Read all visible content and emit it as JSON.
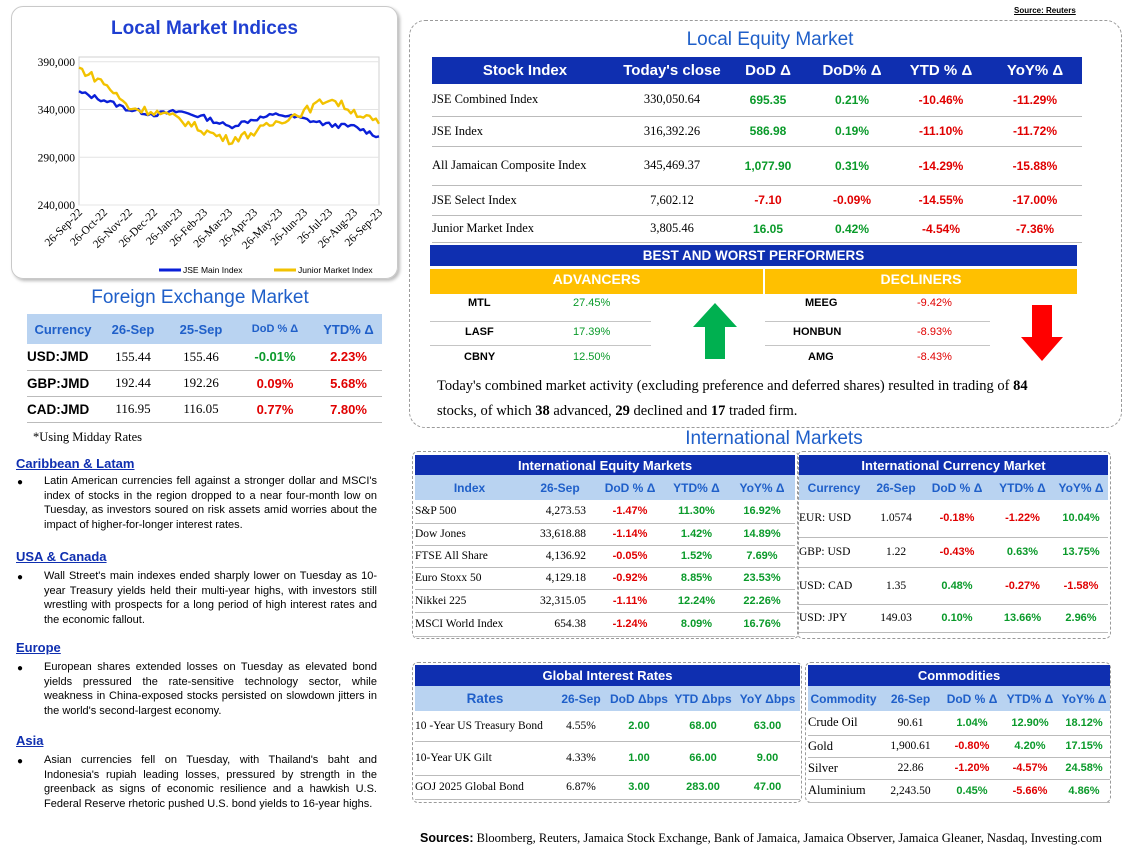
{
  "source_top": "Source: Reuters",
  "chart_data": {
    "type": "line",
    "title": "Local Market Indices",
    "categories": [
      "26-Sep-22",
      "26-Oct-22",
      "26-Nov-22",
      "26-Dec-22",
      "26-Jan-23",
      "26-Feb-23",
      "26-Mar-23",
      "26-Apr-23",
      "26-May-23",
      "26-Jun-23",
      "26-Jul-23",
      "26-Aug-23",
      "26-Sep-23"
    ],
    "y_ticks": [
      "390,000",
      "340,000",
      "290,000",
      "240,000"
    ],
    "ylim": [
      240000,
      395000
    ],
    "legend_position": "bottom",
    "series": [
      {
        "name": "JSE Main Index",
        "color": "#0a1fd8",
        "values": [
          358000,
          350000,
          340000,
          335000,
          338000,
          332000,
          322000,
          330000,
          335000,
          330000,
          324000,
          322000,
          312000
        ]
      },
      {
        "name": "Junior Market Index",
        "color": "#f2c200",
        "values": [
          383000,
          368000,
          342000,
          338000,
          330000,
          318000,
          308000,
          316000,
          328000,
          338000,
          352000,
          338000,
          325000
        ]
      }
    ]
  },
  "fx": {
    "title": "Foreign Exchange Market",
    "headers": [
      "Currency",
      "26-Sep",
      "25-Sep",
      "DoD % Δ",
      "YTD% Δ"
    ],
    "rows": [
      {
        "currency": "USD:JMD",
        "d1": "155.44",
        "d2": "155.46",
        "dod": "-0.01%",
        "ytd": "2.23%"
      },
      {
        "currency": "GBP:JMD",
        "d1": "192.44",
        "d2": "192.26",
        "dod": "0.09%",
        "ytd": "5.68%"
      },
      {
        "currency": "CAD:JMD",
        "d1": "116.95",
        "d2": "116.05",
        "dod": "0.77%",
        "ytd": "7.80%"
      }
    ],
    "note": "*Using Midday Rates"
  },
  "news": [
    {
      "heading": "Caribbean & Latam",
      "text": "Latin American currencies fell against a stronger dollar and MSCI's index of stocks in the region dropped to a near four-month low on Tuesday, as investors soured on risk assets amid worries about the impact of higher-for-longer interest rates."
    },
    {
      "heading": "USA & Canada",
      "text": "Wall Street's main indexes ended sharply lower on Tuesday as 10-year Treasury yields held their multi-year highs, with investors still wrestling with prospects for a long period of high interest rates and the economic fallout."
    },
    {
      "heading": "Europe",
      "text": "European shares extended losses on Tuesday as elevated bond yields pressured the rate-sensitive technology sector, while weakness in China-exposed stocks persisted on slowdown jitters in the world's second-largest economy."
    },
    {
      "heading": "Asia",
      "text": "Asian currencies fell on Tuesday, with Thailand's baht and Indonesia's rupiah leading losses, pressured by strength in the greenback as signs of economic resilience and a hawkish U.S. Federal Reserve rhetoric pushed U.S. bond yields to 16-year highs."
    }
  ],
  "equity": {
    "title": "Local Equity Market",
    "headers": [
      "Stock Index",
      "Today's close",
      "DoD  Δ",
      "DoD% Δ",
      "YTD % Δ",
      "YoY% Δ"
    ],
    "rows": [
      {
        "name": "JSE Combined Index",
        "close": "330,050.64",
        "dod": "695.35",
        "dodp": "0.21%",
        "ytd": "-10.46%",
        "yoy": "-11.29%"
      },
      {
        "name": "JSE Index",
        "close": "316,392.26",
        "dod": "586.98",
        "dodp": "0.19%",
        "ytd": "-11.10%",
        "yoy": "-11.72%"
      },
      {
        "name": "All Jamaican Composite Index",
        "close": "345,469.37",
        "dod": "1,077.90",
        "dodp": "0.31%",
        "ytd": "-14.29%",
        "yoy": "-15.88%"
      },
      {
        "name": "JSE Select Index",
        "close": "7,602.12",
        "dod": "-7.10",
        "dodp": "-0.09%",
        "ytd": "-14.55%",
        "yoy": "-17.00%"
      },
      {
        "name": "Junior Market Index",
        "close": "3,805.46",
        "dod": "16.05",
        "dodp": "0.42%",
        "ytd": "-4.54%",
        "yoy": "-7.36%"
      }
    ]
  },
  "performers": {
    "title": "BEST AND WORST PERFORMERS",
    "advancers_label": "ADVANCERS",
    "decliners_label": "DECLINERS",
    "advancers": [
      {
        "ticker": "MTL",
        "pct": "27.45%"
      },
      {
        "ticker": "LASF",
        "pct": "17.39%"
      },
      {
        "ticker": "CBNY",
        "pct": "12.50%"
      }
    ],
    "decliners": [
      {
        "ticker": "MEEG",
        "pct": "-9.42%"
      },
      {
        "ticker": "HONBUN",
        "pct": "-8.93%"
      },
      {
        "ticker": "AMG",
        "pct": "-8.43%"
      }
    ]
  },
  "summary": {
    "p1": "Today's combined market activity (excluding preference and deferred shares) resulted in trading of ",
    "total": "84",
    "p2": "stocks, of which ",
    "adv": "38",
    "p3": " advanced, ",
    "dec": "29",
    "p4": " declined and ",
    "firm": "17",
    "p5": " traded firm."
  },
  "intl_title": "International Markets",
  "intl_equity": {
    "title": "International Equity Markets",
    "headers": [
      "Index",
      "26-Sep",
      "DoD % Δ",
      "YTD% Δ",
      "YoY% Δ"
    ],
    "rows": [
      {
        "name": "S&P 500",
        "val": "4,273.53",
        "dod": "-1.47%",
        "ytd": "11.30%",
        "yoy": "16.92%"
      },
      {
        "name": "Dow Jones",
        "val": "33,618.88",
        "dod": "-1.14%",
        "ytd": "1.42%",
        "yoy": "14.89%"
      },
      {
        "name": "FTSE All Share",
        "val": "4,136.92",
        "dod": "-0.05%",
        "ytd": "1.52%",
        "yoy": "7.69%"
      },
      {
        "name": "Euro Stoxx 50",
        "val": "4,129.18",
        "dod": "-0.92%",
        "ytd": "8.85%",
        "yoy": "23.53%"
      },
      {
        "name": "Nikkei 225",
        "val": "32,315.05",
        "dod": "-1.11%",
        "ytd": "12.24%",
        "yoy": "22.26%"
      },
      {
        "name": "MSCI World Index",
        "val": "654.38",
        "dod": "-1.24%",
        "ytd": "8.09%",
        "yoy": "16.76%"
      }
    ]
  },
  "intl_fx": {
    "title": "International Currency Market",
    "headers": [
      "Currency",
      "26-Sep",
      "DoD % Δ",
      "YTD% Δ",
      "YoY% Δ"
    ],
    "rows": [
      {
        "name": "EUR: USD",
        "val": "1.0574",
        "dod": "-0.18%",
        "ytd": "-1.22%",
        "yoy": "10.04%"
      },
      {
        "name": "GBP: USD",
        "val": "1.22",
        "dod": "-0.43%",
        "ytd": "0.63%",
        "yoy": "13.75%"
      },
      {
        "name": "USD: CAD",
        "val": "1.35",
        "dod": "0.48%",
        "ytd": "-0.27%",
        "yoy": "-1.58%"
      },
      {
        "name": "USD: JPY",
        "val": "149.03",
        "dod": "0.10%",
        "ytd": "13.66%",
        "yoy": "2.96%"
      }
    ]
  },
  "rates": {
    "title": "Global Interest Rates",
    "headers": [
      "Rates",
      "26-Sep",
      "DoD Δbps",
      "YTD Δbps",
      "YoY Δbps"
    ],
    "rows": [
      {
        "name": "10 -Year US Treasury Bond",
        "val": "4.55%",
        "dod": "2.00",
        "ytd": "68.00",
        "yoy": "63.00"
      },
      {
        "name": "10-Year UK Gilt",
        "val": "4.33%",
        "dod": "1.00",
        "ytd": "66.00",
        "yoy": "9.00"
      },
      {
        "name": "GOJ 2025 Global Bond",
        "val": "6.87%",
        "dod": "3.00",
        "ytd": "283.00",
        "yoy": "47.00"
      }
    ]
  },
  "commodities": {
    "title": "Commodities",
    "headers": [
      "Commodity",
      "26-Sep",
      "DoD % Δ",
      "YTD% Δ",
      "YoY% Δ"
    ],
    "rows": [
      {
        "name": "Crude Oil",
        "val": "90.61",
        "dod": "1.04%",
        "ytd": "12.90%",
        "yoy": "18.12%"
      },
      {
        "name": "Gold",
        "val": "1,900.61",
        "dod": "-0.80%",
        "ytd": "4.20%",
        "yoy": "17.15%"
      },
      {
        "name": "Silver",
        "val": "22.86",
        "dod": "-1.20%",
        "ytd": "-4.57%",
        "yoy": "24.58%"
      },
      {
        "name": "Aluminium",
        "val": "2,243.50",
        "dod": "0.45%",
        "ytd": "-5.66%",
        "yoy": "4.86%"
      }
    ]
  },
  "sources": {
    "label": "Sources:",
    "text": " Bloomberg, Reuters, Jamaica Stock Exchange, Bank of Jamaica, Jamaica Observer, Jamaica Gleaner, Nasdaq, Investing.com"
  },
  "colors": {
    "positive": "#0a9a2a",
    "negative": "#e00000",
    "header_dark": "#0f2fb0",
    "header_light": "#b9d3f1",
    "accent_gold": "#ffc000"
  }
}
